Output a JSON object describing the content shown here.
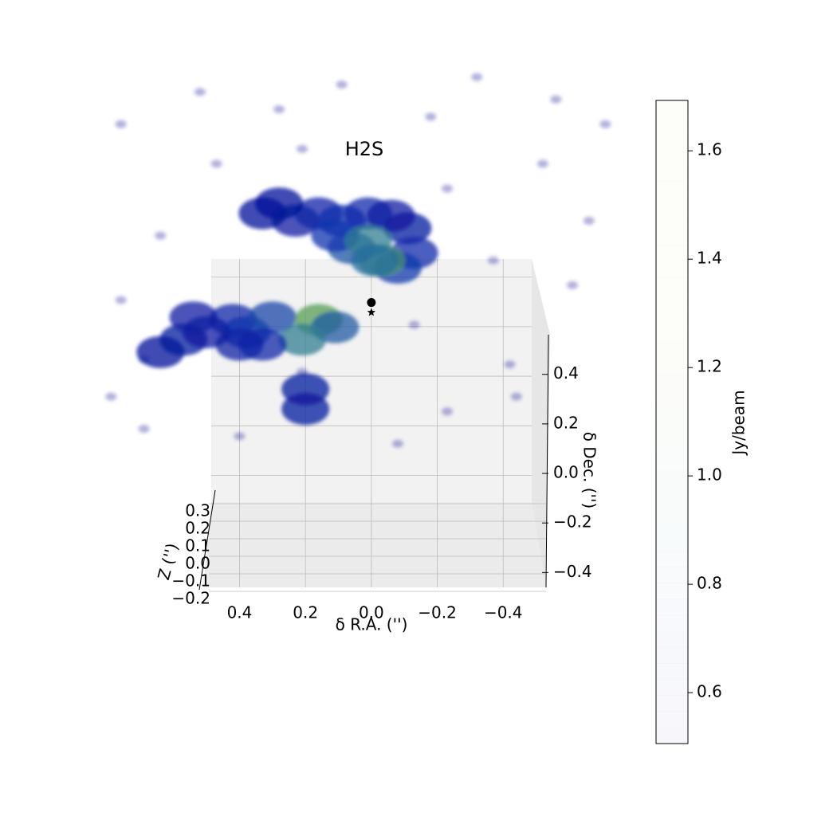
{
  "chart_data": {
    "type": "scatter3d",
    "title": "H2S",
    "xlabel": "δ R.A. ('')",
    "ylabel": "δ Dec. ('')",
    "zlabel": "Z ('')",
    "xlim": [
      0.51,
      -0.53
    ],
    "ylim": [
      -0.46,
      0.56
    ],
    "zlim": [
      -0.2,
      0.35
    ],
    "xticks": [
      0.4,
      0.2,
      {
        "value": 0,
        "label": "0.0"
      },
      {
        "value": -0.2,
        "label": "−0.2"
      },
      {
        "value": -0.4,
        "label": "−0.4"
      }
    ],
    "yticks": [
      {
        "value": -0.4,
        "label": "−0.4"
      },
      {
        "value": -0.2,
        "label": "−0.2"
      },
      {
        "value": 0,
        "label": "0.0"
      },
      0.2,
      0.4
    ],
    "zticks": [
      {
        "value": -0.2,
        "label": "−0.2"
      },
      {
        "value": -0.1,
        "label": "−0.1"
      },
      {
        "value": 0,
        "label": "0.0"
      },
      0.1,
      0.2,
      0.3
    ],
    "grid": true,
    "cmap": [
      "#00008c",
      "#1030b0",
      "#2a7a9a",
      "#58a050",
      "#b0b040"
    ],
    "series": [
      {
        "x": [
          0.23,
          0.16,
          0.09,
          0.01,
          -0.06,
          -0.11,
          -0.13,
          -0.08,
          -0.03,
          0.06,
          0.11,
          0.01,
          -0.01,
          0.28,
          0.33,
          0.21,
          0.42,
          0.38,
          0.3,
          0.16,
          0.11,
          0.21,
          0.33,
          0.4,
          0.5,
          0.57,
          0.64,
          0.69,
          0.54,
          0.2,
          0.2,
          0.21,
          0.76,
          0.52,
          0.28,
          -0.32,
          -0.56,
          -0.71,
          -0.52,
          -0.23,
          -0.37,
          -0.61,
          -0.13,
          -0.42,
          -0.23,
          0.76,
          0.69,
          0.4,
          -0.08,
          -0.44,
          -0.66,
          0.64,
          0.79,
          0.47,
          -0.18,
          0.09
        ],
        "y": [
          0.56,
          0.59,
          0.56,
          0.59,
          0.58,
          0.53,
          0.43,
          0.37,
          0.4,
          0.45,
          0.5,
          0.48,
          0.4,
          0.63,
          0.59,
          0.85,
          0.16,
          0.11,
          0.17,
          0.16,
          0.13,
          0.08,
          0.06,
          0.06,
          0.11,
          0.08,
          0.03,
          0.0,
          0.17,
          -0.12,
          -0.2,
          -0.05,
          0.95,
          1.08,
          1.01,
          1.14,
          1.05,
          0.95,
          0.79,
          0.69,
          0.4,
          0.3,
          0.14,
          -0.02,
          -0.21,
          0.24,
          -0.28,
          -0.31,
          -0.34,
          -0.15,
          0.56,
          0.5,
          -0.15,
          0.79,
          0.98,
          1.11
        ],
        "c": [
          0.62,
          0.64,
          0.68,
          0.66,
          0.62,
          0.6,
          0.66,
          0.72,
          1.0,
          0.78,
          0.7,
          0.9,
          0.85,
          0.58,
          0.58,
          0.55,
          0.66,
          0.7,
          0.75,
          1.05,
          0.8,
          0.9,
          0.66,
          0.64,
          0.62,
          0.6,
          0.58,
          0.56,
          0.62,
          0.6,
          0.6,
          0.56,
          0.52,
          0.52,
          0.52,
          0.52,
          0.52,
          0.52,
          0.52,
          0.52,
          0.52,
          0.52,
          0.53,
          0.52,
          0.52,
          0.52,
          0.52,
          0.52,
          0.52,
          0.52,
          0.52,
          0.52,
          0.52,
          0.52,
          0.52,
          0.52
        ]
      }
    ],
    "markers": {
      "x": [
        0,
        0
      ],
      "y": [
        0.23,
        0.19
      ],
      "symbols": [
        "circle",
        "star"
      ]
    },
    "colorbar": {
      "label": "Jy/beam",
      "clim": [
        0.506,
        1.693
      ],
      "ticks": [
        0.6,
        0.8,
        {
          "value": 1,
          "label": "1.0"
        },
        1.2,
        1.4,
        1.6
      ]
    }
  }
}
